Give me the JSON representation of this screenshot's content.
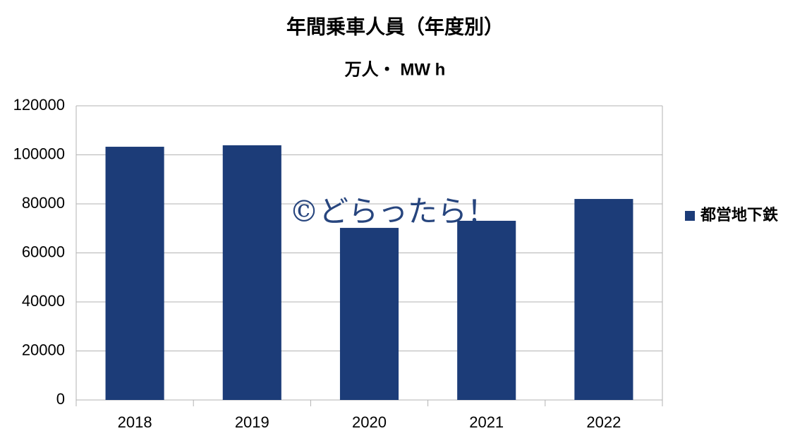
{
  "chart_data": {
    "type": "bar",
    "title": "年間乗車人員（年度別）",
    "subtitle": "万人・ MW h",
    "watermark": "©どらったら！",
    "categories": [
      "2018",
      "2019",
      "2020",
      "2021",
      "2022"
    ],
    "series": [
      {
        "name": "都営地下鉄",
        "color": "#1c3c78",
        "values": [
          103300,
          103900,
          70200,
          73100,
          82000
        ]
      }
    ],
    "ylim": [
      0,
      120000
    ],
    "yticks": [
      0,
      20000,
      40000,
      60000,
      80000,
      100000,
      120000
    ],
    "grid": true,
    "legend": "right"
  }
}
